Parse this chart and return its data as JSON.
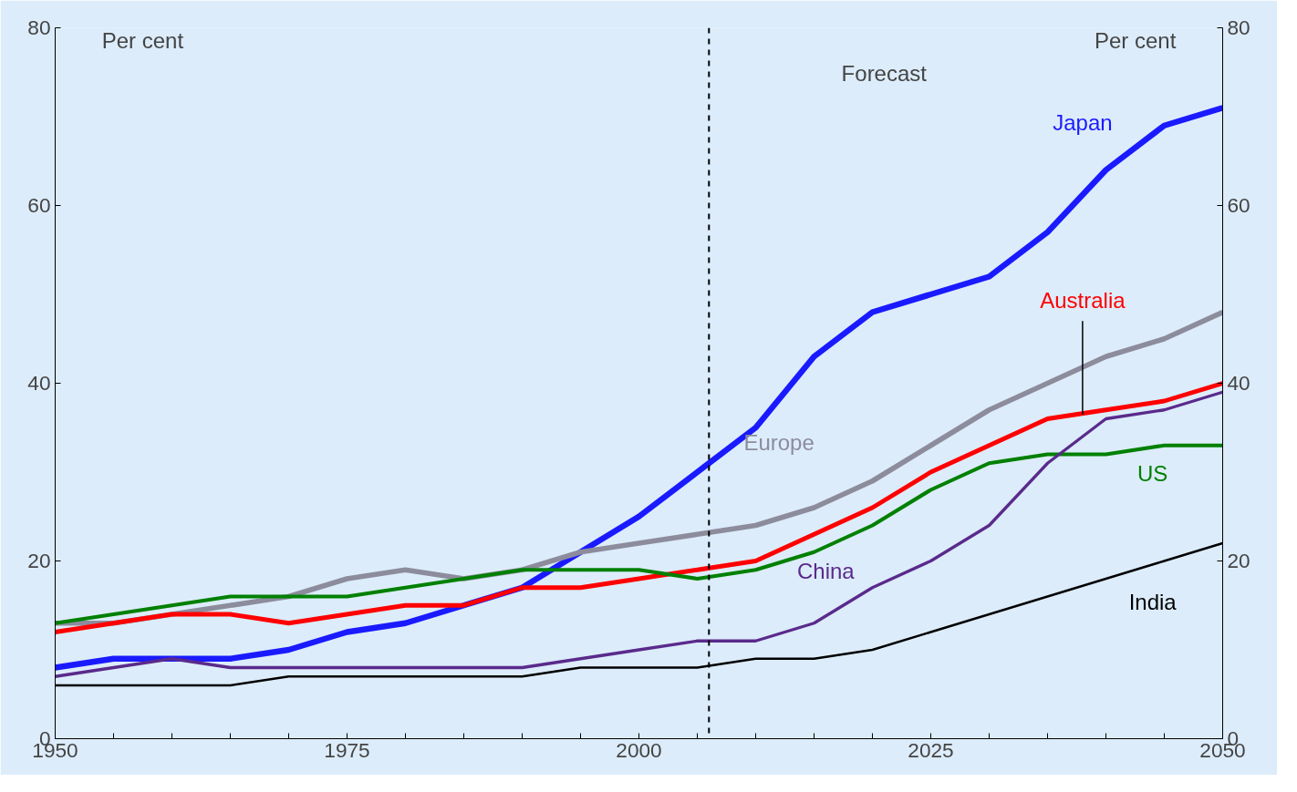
{
  "chart_data": {
    "type": "line",
    "x": [
      1950,
      1955,
      1960,
      1965,
      1970,
      1975,
      1980,
      1985,
      1990,
      1995,
      2000,
      2005,
      2010,
      2015,
      2020,
      2025,
      2030,
      2035,
      2040,
      2045,
      2050
    ],
    "series": [
      {
        "name": "Japan",
        "color": "#1a1aff",
        "values": [
          8,
          9,
          9,
          9,
          10,
          12,
          13,
          15,
          17,
          21,
          25,
          30,
          35,
          43,
          48,
          50,
          52,
          57,
          64,
          69,
          71
        ]
      },
      {
        "name": "Europe",
        "color": "#8c8c9c",
        "values": [
          13,
          13,
          14,
          15,
          16,
          18,
          19,
          18,
          19,
          21,
          22,
          23,
          24,
          26,
          29,
          33,
          37,
          40,
          43,
          45,
          48
        ]
      },
      {
        "name": "Australia",
        "color": "#ff0000",
        "values": [
          12,
          13,
          14,
          14,
          13,
          14,
          15,
          15,
          17,
          17,
          18,
          19,
          20,
          23,
          26,
          30,
          33,
          36,
          37,
          38,
          40
        ]
      },
      {
        "name": "US",
        "color": "#008000",
        "values": [
          13,
          14,
          15,
          16,
          16,
          16,
          17,
          18,
          19,
          19,
          19,
          18,
          19,
          21,
          24,
          28,
          31,
          32,
          32,
          33,
          33
        ]
      },
      {
        "name": "China",
        "color": "#5a2a8c",
        "values": [
          7,
          8,
          9,
          8,
          8,
          8,
          8,
          8,
          8,
          9,
          10,
          11,
          11,
          13,
          17,
          20,
          24,
          31,
          36,
          37,
          39
        ]
      },
      {
        "name": "India",
        "color": "#000000",
        "values": [
          6,
          6,
          6,
          6,
          7,
          7,
          7,
          7,
          7,
          8,
          8,
          8,
          9,
          9,
          10,
          12,
          14,
          16,
          18,
          20,
          22
        ]
      }
    ],
    "xlim": [
      1950,
      2050
    ],
    "xticks": [
      1950,
      {
        "value": 1955,
        "label": null
      },
      {
        "value": 1960,
        "label": null
      },
      {
        "value": 1965,
        "label": null
      },
      {
        "value": 1970,
        "label": null
      },
      1975,
      {
        "value": 1980,
        "label": null
      },
      {
        "value": 1985,
        "label": null
      },
      {
        "value": 1990,
        "label": null
      },
      {
        "value": 1995,
        "label": null
      },
      2000,
      {
        "value": 2005,
        "label": null
      },
      {
        "value": 2010,
        "label": null
      },
      {
        "value": 2015,
        "label": null
      },
      {
        "value": 2020,
        "label": null
      },
      2025,
      {
        "value": 2030,
        "label": null
      },
      {
        "value": 2035,
        "label": null
      },
      {
        "value": 2040,
        "label": null
      },
      {
        "value": 2045,
        "label": null
      },
      2050
    ],
    "ylim": [
      0,
      80
    ],
    "yticks": [
      0,
      20,
      40,
      60,
      80
    ],
    "y2lim": [
      0,
      80
    ],
    "y2ticks": [
      0,
      20,
      40,
      60,
      80
    ],
    "ylabel": "Per cent",
    "y2label": "Per cent",
    "ref_lines": [
      {
        "axis": "x",
        "value": 2006,
        "color": "#000000",
        "line_style": "dashed"
      }
    ],
    "annotations": [
      "Forecast"
    ],
    "grid": false,
    "marker": "none",
    "line_style": "solid"
  }
}
